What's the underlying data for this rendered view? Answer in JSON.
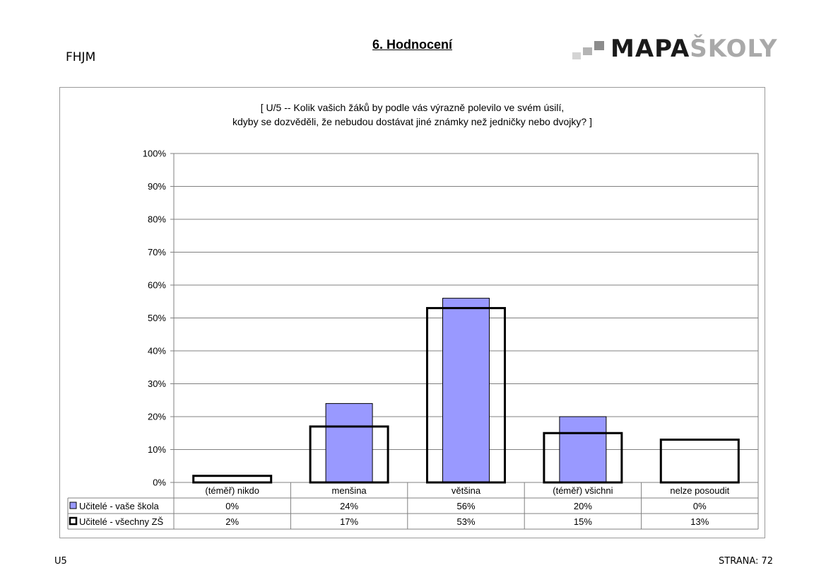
{
  "header": {
    "school_code": "FHJM",
    "page_heading": "6. Hodnocení",
    "logo": {
      "dark_part": "MAPA",
      "light_part": "ŠKOLY"
    }
  },
  "footer": {
    "left": "U5",
    "right": "STRANA: 72"
  },
  "colors": {
    "series_school": "#9999ff",
    "series_all": "#ffffff",
    "outline": "#000000",
    "gridline": "#808080"
  },
  "chart_data": {
    "type": "bar",
    "title_lines": [
      "[ U/5 -- Kolik vašich žáků by podle vás výrazně polevilo ve svém úsilí,",
      "kdyby se dozvěděli, že nebudou dostávat jiné známky než jedničky nebo dvojky? ]"
    ],
    "categories": [
      "(téměř) nikdo",
      "menšina",
      "většina",
      "(téměř) všichni",
      "nelze posoudit"
    ],
    "series": [
      {
        "name": "Učitelé - vaše škola",
        "values": [
          0,
          24,
          56,
          20,
          0
        ],
        "labels": [
          "0%",
          "24%",
          "56%",
          "20%",
          "0%"
        ]
      },
      {
        "name": "Učitelé - všechny ZŠ",
        "values": [
          2,
          17,
          53,
          15,
          13
        ],
        "labels": [
          "2%",
          "17%",
          "53%",
          "15%",
          "13%"
        ]
      }
    ],
    "ylim": [
      0,
      100
    ],
    "yticks": [
      "0%",
      "10%",
      "20%",
      "30%",
      "40%",
      "50%",
      "60%",
      "70%",
      "80%",
      "90%",
      "100%"
    ],
    "grid": true,
    "legend": "data-table"
  }
}
